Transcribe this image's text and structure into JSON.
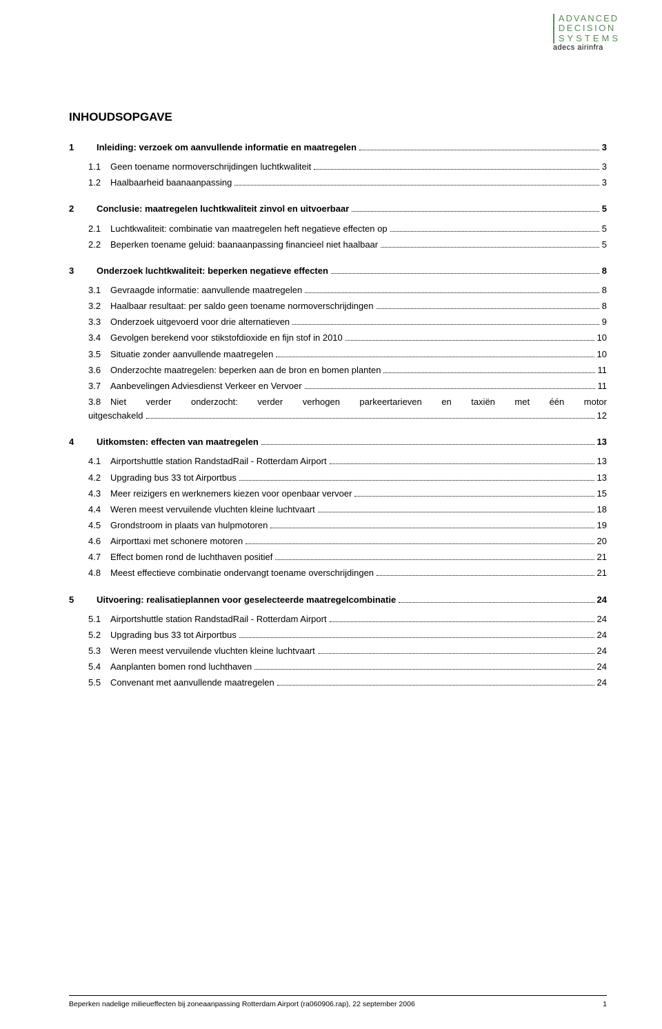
{
  "logo": {
    "line1": "ADVANCED",
    "line2": "DECISION",
    "line3": "SYSTEMS",
    "line4": "adecs airinfra"
  },
  "title": "INHOUDSOPGAVE",
  "toc": [
    {
      "level": 1,
      "num": "1",
      "text": "Inleiding: verzoek om aanvullende informatie en maatregelen",
      "page": "3"
    },
    {
      "level": 2,
      "num": "1.1",
      "text": "Geen toename normoverschrijdingen luchtkwaliteit",
      "page": "3"
    },
    {
      "level": 2,
      "num": "1.2",
      "text": "Haalbaarheid baanaanpassing",
      "page": "3"
    },
    {
      "level": 1,
      "num": "2",
      "text": "Conclusie: maatregelen luchtkwaliteit zinvol en uitvoerbaar",
      "page": "5"
    },
    {
      "level": 2,
      "num": "2.1",
      "text": "Luchtkwaliteit: combinatie van maatregelen heft negatieve effecten op",
      "page": "5"
    },
    {
      "level": 2,
      "num": "2.2",
      "text": "Beperken toename geluid: baanaanpassing financieel niet haalbaar",
      "page": "5"
    },
    {
      "level": 1,
      "num": "3",
      "text": "Onderzoek luchtkwaliteit: beperken negatieve effecten",
      "page": "8"
    },
    {
      "level": 2,
      "num": "3.1",
      "text": "Gevraagde informatie: aanvullende maatregelen",
      "page": "8"
    },
    {
      "level": 2,
      "num": "3.2",
      "text": "Haalbaar resultaat: per saldo geen toename normoverschrijdingen",
      "page": "8"
    },
    {
      "level": 2,
      "num": "3.3",
      "text": "Onderzoek uitgevoerd voor drie alternatieven",
      "page": "9"
    },
    {
      "level": 2,
      "num": "3.4",
      "text": "Gevolgen berekend voor stikstofdioxide en fijn stof in 2010",
      "page": "10"
    },
    {
      "level": 2,
      "num": "3.5",
      "text": "Situatie zonder aanvullende maatregelen",
      "page": "10"
    },
    {
      "level": 2,
      "num": "3.6",
      "text": "Onderzochte maatregelen: beperken aan de bron en bomen planten",
      "page": "11"
    },
    {
      "level": 2,
      "num": "3.7",
      "text": "Aanbevelingen Adviesdienst Verkeer en Vervoer",
      "page": "11"
    },
    {
      "level": 2,
      "num": "3.8",
      "pre": "Niet verder onderzocht: verder verhogen parkeertarieven en taxiën met één motor",
      "text": "uitgeschakeld",
      "page": "12",
      "wrap": true
    },
    {
      "level": 1,
      "num": "4",
      "text": "Uitkomsten: effecten van maatregelen",
      "page": "13"
    },
    {
      "level": 2,
      "num": "4.1",
      "text": "Airportshuttle station RandstadRail - Rotterdam Airport",
      "page": "13"
    },
    {
      "level": 2,
      "num": "4.2",
      "text": "Upgrading bus 33 tot Airportbus",
      "page": "13"
    },
    {
      "level": 2,
      "num": "4.3",
      "text": "Meer reizigers en werknemers kiezen voor openbaar vervoer",
      "page": "15"
    },
    {
      "level": 2,
      "num": "4.4",
      "text": "Weren meest vervuilende vluchten kleine luchtvaart",
      "page": "18"
    },
    {
      "level": 2,
      "num": "4.5",
      "text": "Grondstroom in plaats van hulpmotoren",
      "page": "19"
    },
    {
      "level": 2,
      "num": "4.6",
      "text": "Airporttaxi met schonere motoren",
      "page": "20"
    },
    {
      "level": 2,
      "num": "4.7",
      "text": "Effect bomen rond de luchthaven positief",
      "page": "21"
    },
    {
      "level": 2,
      "num": "4.8",
      "text": "Meest effectieve combinatie ondervangt toename overschrijdingen",
      "page": "21"
    },
    {
      "level": 1,
      "num": "5",
      "text": "Uitvoering: realisatieplannen voor geselecteerde maatregelcombinatie",
      "page": "24"
    },
    {
      "level": 2,
      "num": "5.1",
      "text": "Airportshuttle station RandstadRail - Rotterdam Airport",
      "page": "24"
    },
    {
      "level": 2,
      "num": "5.2",
      "text": "Upgrading bus 33 tot Airportbus",
      "page": "24"
    },
    {
      "level": 2,
      "num": "5.3",
      "text": "Weren meest vervuilende vluchten kleine luchtvaart",
      "page": "24"
    },
    {
      "level": 2,
      "num": "5.4",
      "text": "Aanplanten bomen rond luchthaven",
      "page": "24"
    },
    {
      "level": 2,
      "num": "5.5",
      "text": "Convenant met aanvullende maatregelen",
      "page": "24"
    }
  ],
  "footer": {
    "text": "Beperken nadelige milieueffecten bij zoneaanpassing Rotterdam Airport (ra060906.rap), 22 september 2006",
    "pagenum": "1"
  },
  "colors": {
    "background": "#ffffff",
    "text": "#000000",
    "logo_green": "#5a8a5a"
  },
  "typography": {
    "body_fontsize": 13,
    "title_fontsize": 17,
    "footer_fontsize": 10.5,
    "font_family": "Arial"
  }
}
